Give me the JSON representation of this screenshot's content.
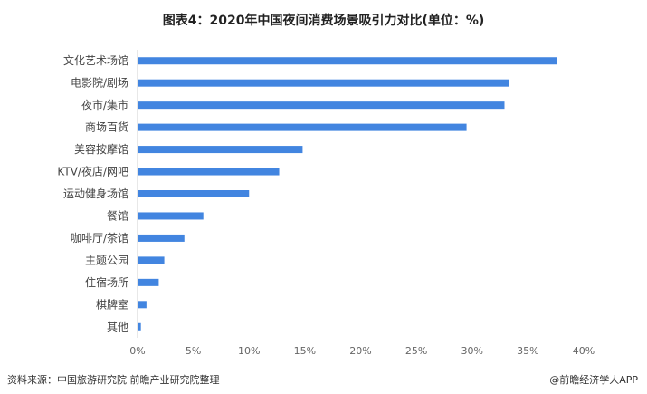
{
  "chart_data": {
    "type": "bar",
    "orientation": "horizontal",
    "title": "图表4：2020年中国夜间消费场景吸引力对比(单位：%)",
    "categories": [
      "文化艺术场馆",
      "电影院/剧场",
      "夜市/集市",
      "商场百货",
      "美容按摩馆",
      "KTV/夜店/网吧",
      "运动健身场馆",
      "餐馆",
      "咖啡厅/茶馆",
      "主题公园",
      "住宿场所",
      "棋牌室",
      "其他"
    ],
    "values": [
      37.6,
      33.3,
      32.9,
      29.5,
      14.8,
      12.7,
      10.0,
      5.9,
      4.2,
      2.4,
      1.9,
      0.8,
      0.3
    ],
    "xlim": [
      0,
      40
    ],
    "xticks": [
      "0%",
      "5%",
      "10%",
      "15%",
      "20%",
      "25%",
      "30%",
      "35%",
      "40%"
    ],
    "xlabel": "",
    "ylabel": "",
    "grid": false,
    "bar_color": "#4285e0"
  },
  "footer": {
    "source": "资料来源：中国旅游研究院 前瞻产业研究院整理",
    "brand": "@前瞻经济学人APP"
  }
}
